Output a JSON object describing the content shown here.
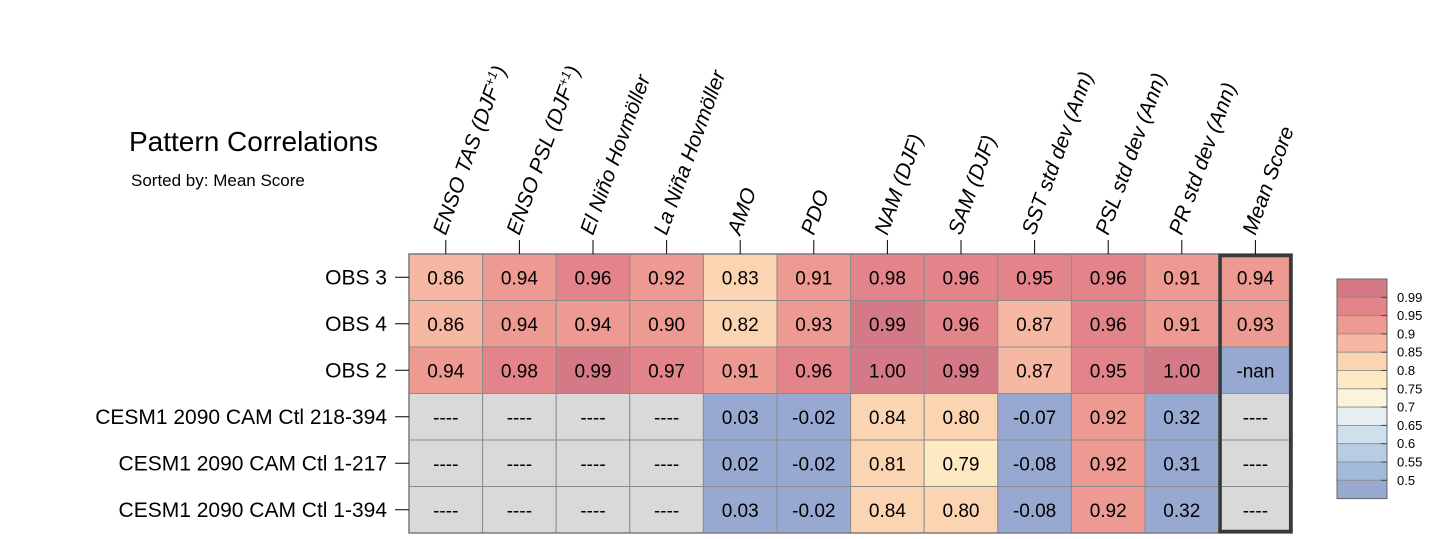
{
  "title": "Pattern Correlations",
  "subtitle": "Sorted by: Mean Score",
  "chart_data": {
    "type": "heatmap",
    "title": "Pattern Correlations",
    "subtitle": "Sorted by: Mean Score",
    "columns": [
      "ENSO TAS (DJF+1)",
      "ENSO PSL (DJF+1)",
      "El Niño Hovmöller",
      "La Niña Hovmöller",
      "AMO",
      "PDO",
      "NAM (DJF)",
      "SAM (DJF)",
      "SST std dev (Ann)",
      "PSL std dev (Ann)",
      "PR std dev (Ann)",
      "Mean Score"
    ],
    "rows": [
      "OBS 3",
      "OBS 4",
      "OBS 2",
      "CESM1 2090 CAM Ctl 218-394",
      "CESM1 2090 CAM Ctl 1-217",
      "CESM1 2090 CAM Ctl 1-394"
    ],
    "values": [
      [
        "0.86",
        "0.94",
        "0.96",
        "0.92",
        "0.83",
        "0.91",
        "0.98",
        "0.96",
        "0.95",
        "0.96",
        "0.91",
        "0.94"
      ],
      [
        "0.86",
        "0.94",
        "0.94",
        "0.90",
        "0.82",
        "0.93",
        "0.99",
        "0.96",
        "0.87",
        "0.96",
        "0.91",
        "0.93"
      ],
      [
        "0.94",
        "0.98",
        "0.99",
        "0.97",
        "0.91",
        "0.96",
        "1.00",
        "0.99",
        "0.87",
        "0.95",
        "1.00",
        "-nan"
      ],
      [
        "----",
        "----",
        "----",
        "----",
        "0.03",
        "-0.02",
        "0.84",
        "0.80",
        "-0.07",
        "0.92",
        "0.32",
        "----"
      ],
      [
        "----",
        "----",
        "----",
        "----",
        "0.02",
        "-0.02",
        "0.81",
        "0.79",
        "-0.08",
        "0.92",
        "0.31",
        "----"
      ],
      [
        "----",
        "----",
        "----",
        "----",
        "0.03",
        "-0.02",
        "0.84",
        "0.80",
        "-0.08",
        "0.92",
        "0.32",
        "----"
      ]
    ],
    "highlighted_column": "Mean Score",
    "colorbar": {
      "labels": [
        "0.99",
        "0.95",
        "0.9",
        "0.85",
        "0.8",
        "0.75",
        "0.7",
        "0.65",
        "0.6",
        "0.55",
        "0.5"
      ],
      "colors": [
        "#d47a87",
        "#e3848a",
        "#ed9a92",
        "#f7b8a3",
        "#fbd4b2",
        "#fde9c2",
        "#fbf4dc",
        "#e6eef4",
        "#cfe0ec",
        "#b6cde3",
        "#a3bad8",
        "#97a9d0"
      ]
    },
    "missing_color": "#d9d9d9",
    "nan_color": "#97a9d0"
  }
}
